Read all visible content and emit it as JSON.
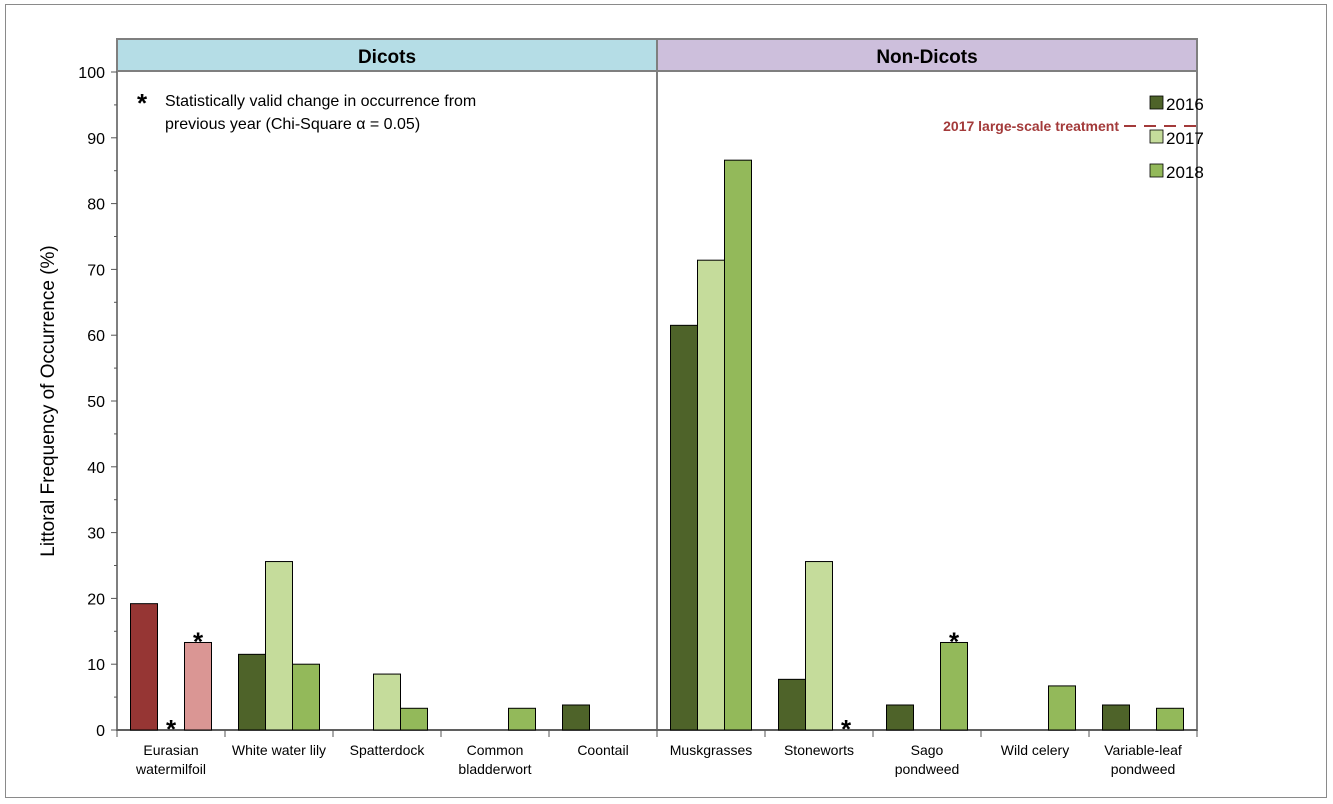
{
  "chart_data": {
    "type": "bar",
    "ylabel": "Littoral Frequency of Occurrence (%)",
    "ylim": [
      0,
      100
    ],
    "yticks": [
      "0",
      "10",
      "20",
      "30",
      "40",
      "50",
      "60",
      "70",
      "80",
      "90",
      "100"
    ],
    "panels": [
      {
        "title": "Dicots",
        "color": "#b5dde6"
      },
      {
        "title": "Non-Dicots",
        "color": "#cdbfdc"
      }
    ],
    "categories": [
      {
        "lines": [
          "Eurasian",
          "watermilfoil"
        ],
        "panel": 0
      },
      {
        "lines": [
          "White water lily"
        ],
        "panel": 0
      },
      {
        "lines": [
          "Spatterdock"
        ],
        "panel": 0
      },
      {
        "lines": [
          "Common",
          "bladderwort"
        ],
        "panel": 0
      },
      {
        "lines": [
          "Coontail"
        ],
        "panel": 0
      },
      {
        "lines": [
          "Muskgrasses"
        ],
        "panel": 1
      },
      {
        "lines": [
          "Stoneworts"
        ],
        "panel": 1
      },
      {
        "lines": [
          "Sago",
          "pondweed"
        ],
        "panel": 1
      },
      {
        "lines": [
          "Wild celery"
        ],
        "panel": 1
      },
      {
        "lines": [
          "Variable-leaf",
          "pondweed"
        ],
        "panel": 1
      }
    ],
    "series": [
      {
        "name": "2016",
        "color": "#4e6329",
        "values": [
          19.2,
          11.5,
          0,
          0,
          3.8,
          61.5,
          7.7,
          3.8,
          0,
          3.8
        ]
      },
      {
        "name": "2017",
        "color": "#c5dc9b",
        "values": [
          0,
          25.6,
          8.5,
          0,
          0,
          71.4,
          25.6,
          0,
          0,
          0
        ]
      },
      {
        "name": "2018",
        "color": "#93b95a",
        "values": [
          13.3,
          10.0,
          3.3,
          3.3,
          0,
          86.6,
          0,
          13.3,
          6.7,
          3.3
        ]
      }
    ],
    "eurasian_colors": {
      "2016": "#963634",
      "2018": "#da9694"
    },
    "significance_markers": [
      {
        "category": 0,
        "series": 1
      },
      {
        "category": 0,
        "series": 2
      },
      {
        "category": 6,
        "series": 2
      },
      {
        "category": 7,
        "series": 2
      }
    ],
    "legend": {
      "placement": "top-right",
      "entries": [
        "2016",
        "2017",
        "2018"
      ]
    },
    "annotations": {
      "star": "*",
      "note_line1": "Statistically valid change in occurrence from",
      "note_line2": "previous year (Chi-Square α = 0.05)",
      "treatment_label": "2017 large-scale treatment"
    }
  }
}
